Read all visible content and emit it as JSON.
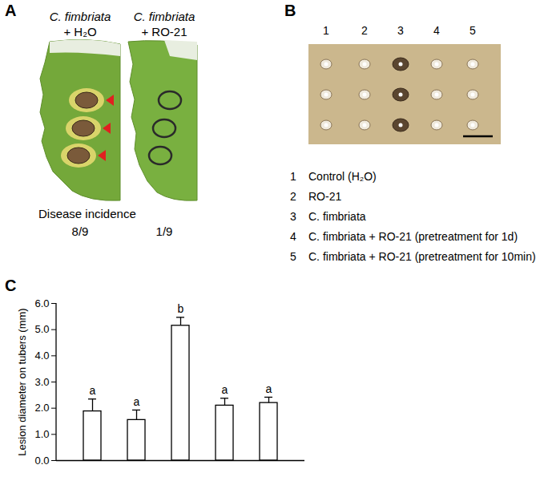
{
  "panels": {
    "A": {
      "label": "A",
      "images": [
        {
          "title": [
            "C. fimbriata",
            "+ H₂O"
          ],
          "disease_incidence": "8/9"
        },
        {
          "title": [
            "C. fimbriata",
            "+ RO-21"
          ],
          "disease_incidence": "1/9"
        }
      ],
      "disease_incidence_label": "Disease incidence"
    },
    "B": {
      "label": "B",
      "columns": [
        1,
        2,
        3,
        4,
        5
      ],
      "key": [
        {
          "number": 1,
          "text": "Control (H₂O)"
        },
        {
          "number": 2,
          "text": "RO-21"
        },
        {
          "number": 3,
          "text": "C. fimbriata"
        },
        {
          "number": 4,
          "text": "C. fimbriata + RO-21 (pretreatment for 1d)"
        },
        {
          "number": 5,
          "text": "C. fimbriata + RO-21 (pretreatment for 10min)"
        }
      ]
    },
    "C": {
      "label": "C"
    }
  },
  "chart_data": {
    "type": "bar",
    "categories": [
      null,
      null,
      null,
      null,
      null
    ],
    "values": [
      1.88,
      1.55,
      5.15,
      2.1,
      2.2
    ],
    "errors": [
      0.47,
      0.38,
      0.32,
      0.28,
      0.22
    ],
    "annotations": [
      "a",
      "a",
      "b",
      "a",
      "a"
    ],
    "ylabel": "Lesion diameter on tubers (mm)",
    "ylim": [
      0,
      6
    ],
    "yticks": [
      0,
      1,
      2,
      3,
      4,
      5,
      6
    ],
    "color": "#ffffff",
    "grid": false,
    "tick_labels": "y"
  }
}
